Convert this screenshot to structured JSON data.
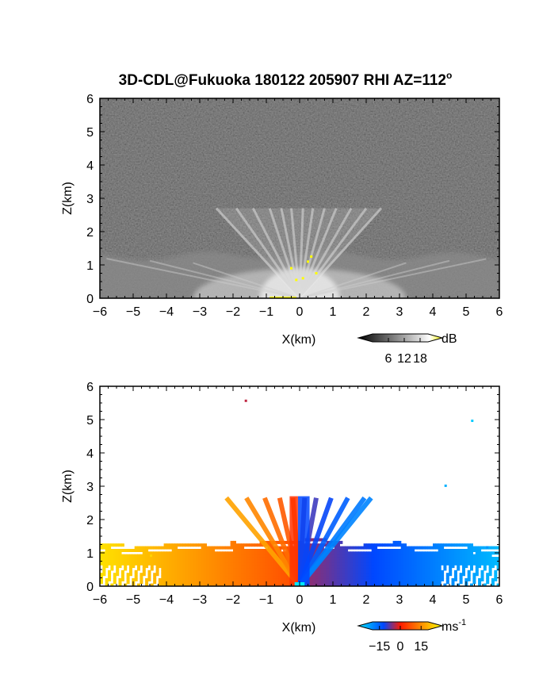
{
  "figure": {
    "title": "3D-CDL@Fukuoka 180122 205907 RHI AZ=112",
    "title_superscript": "o"
  },
  "chart_data": [
    {
      "type": "heatmap",
      "panel": "reflectivity",
      "xlabel": "X(km)",
      "ylabel": "Z(km)",
      "xlim": [
        -6,
        6
      ],
      "ylim": [
        0,
        6
      ],
      "xticks": [
        "-6",
        "-5",
        "-4",
        "-3",
        "-2",
        "-1",
        "0",
        "1",
        "2",
        "3",
        "4",
        "5",
        "6"
      ],
      "yticks": [
        "0",
        "1",
        "2",
        "3",
        "4",
        "5",
        "6"
      ],
      "background": "#2b2b2b",
      "colorbar": {
        "unit": "dB",
        "ticks": [
          "6",
          "12",
          "18"
        ],
        "range": [
          0,
          21
        ],
        "colors": [
          "#000000",
          "#ffffff",
          "#ffff00"
        ],
        "extend": "both"
      },
      "features": {
        "boundary_layer_top_km": 1.3,
        "fan_top_km": 2.7,
        "range_km": 6
      }
    },
    {
      "type": "heatmap",
      "panel": "doppler_velocity",
      "xlabel": "X(km)",
      "ylabel": "Z(km)",
      "xlim": [
        -6,
        6
      ],
      "ylim": [
        0,
        6
      ],
      "xticks": [
        "-6",
        "-5",
        "-4",
        "-3",
        "-2",
        "-1",
        "0",
        "1",
        "2",
        "3",
        "4",
        "5",
        "6"
      ],
      "yticks": [
        "0",
        "1",
        "2",
        "3",
        "4",
        "5",
        "6"
      ],
      "background": "#ffffff",
      "colorbar": {
        "unit": "ms",
        "unit_superscript": "-1",
        "ticks": [
          "-15",
          "0",
          "15"
        ],
        "range": [
          -20,
          20
        ],
        "colors": [
          "#00e5ff",
          "#0047ff",
          "#ff1a00",
          "#ffa500",
          "#ffff00"
        ],
        "extend": "both"
      },
      "features": {
        "negative_side": "left",
        "positive_side": "right",
        "max_velocity_ms": 15
      }
    }
  ]
}
